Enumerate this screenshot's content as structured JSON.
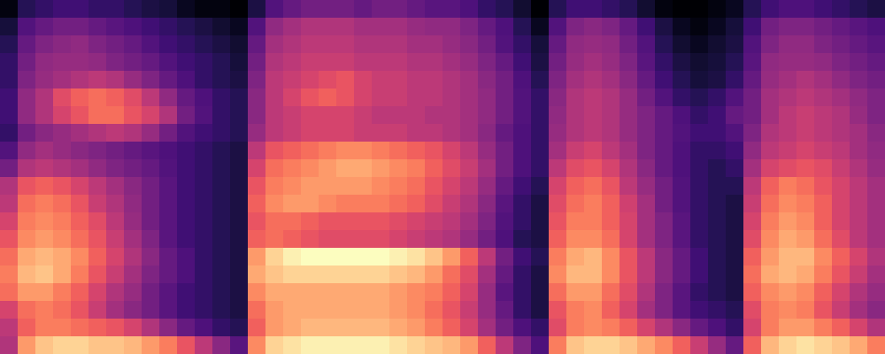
{
  "chart_data": {
    "type": "heatmap",
    "color": "magma",
    "tick_labels": false,
    "cells": [
      [
        30,
        38,
        40,
        42,
        42,
        40,
        40,
        38,
        36,
        35,
        32,
        30,
        30,
        28,
        36,
        45,
        48,
        50,
        50,
        50,
        48,
        50,
        50,
        48,
        46,
        46,
        44,
        40,
        38,
        34,
        28,
        38,
        42,
        42,
        40,
        38,
        34,
        30,
        28,
        28,
        30,
        32,
        38,
        42,
        44,
        44,
        42,
        40,
        38,
        36
      ],
      [
        35,
        45,
        48,
        50,
        50,
        48,
        46,
        44,
        42,
        40,
        38,
        36,
        34,
        32,
        45,
        55,
        58,
        60,
        60,
        60,
        58,
        58,
        58,
        56,
        55,
        55,
        52,
        48,
        44,
        38,
        32,
        45,
        52,
        54,
        52,
        48,
        42,
        36,
        32,
        30,
        32,
        35,
        42,
        50,
        52,
        52,
        50,
        48,
        46,
        44
      ],
      [
        38,
        48,
        52,
        54,
        55,
        52,
        50,
        48,
        45,
        42,
        40,
        38,
        36,
        34,
        48,
        58,
        60,
        62,
        62,
        62,
        60,
        60,
        60,
        58,
        58,
        56,
        54,
        50,
        45,
        40,
        35,
        48,
        55,
        56,
        55,
        50,
        45,
        38,
        34,
        32,
        34,
        36,
        45,
        52,
        55,
        55,
        52,
        50,
        48,
        46
      ],
      [
        40,
        50,
        55,
        56,
        56,
        55,
        52,
        50,
        48,
        45,
        42,
        40,
        38,
        35,
        50,
        60,
        62,
        64,
        64,
        64,
        62,
        62,
        62,
        60,
        60,
        58,
        56,
        52,
        48,
        42,
        36,
        50,
        56,
        58,
        56,
        52,
        46,
        40,
        36,
        34,
        35,
        38,
        46,
        55,
        56,
        56,
        55,
        52,
        50,
        48
      ],
      [
        40,
        52,
        56,
        58,
        60,
        62,
        60,
        56,
        52,
        48,
        44,
        40,
        38,
        36,
        52,
        62,
        64,
        66,
        68,
        70,
        66,
        64,
        64,
        62,
        62,
        60,
        58,
        54,
        50,
        44,
        38,
        52,
        58,
        60,
        58,
        54,
        48,
        42,
        38,
        35,
        36,
        40,
        48,
        56,
        58,
        60,
        58,
        55,
        52,
        50
      ],
      [
        42,
        55,
        60,
        68,
        72,
        74,
        72,
        68,
        62,
        55,
        48,
        44,
        40,
        38,
        54,
        62,
        66,
        70,
        72,
        70,
        66,
        64,
        64,
        62,
        62,
        60,
        58,
        55,
        50,
        45,
        40,
        54,
        60,
        62,
        60,
        56,
        50,
        45,
        40,
        38,
        40,
        45,
        50,
        58,
        60,
        62,
        60,
        58,
        55,
        52
      ],
      [
        42,
        55,
        60,
        66,
        70,
        74,
        74,
        70,
        66,
        60,
        50,
        45,
        40,
        38,
        54,
        62,
        64,
        66,
        66,
        66,
        64,
        62,
        62,
        62,
        60,
        60,
        58,
        55,
        50,
        45,
        40,
        55,
        60,
        62,
        60,
        56,
        52,
        48,
        44,
        40,
        42,
        48,
        50,
        58,
        62,
        64,
        62,
        60,
        56,
        52
      ],
      [
        40,
        50,
        54,
        56,
        58,
        60,
        62,
        60,
        56,
        50,
        45,
        42,
        40,
        38,
        56,
        62,
        64,
        66,
        66,
        66,
        64,
        64,
        64,
        62,
        62,
        60,
        58,
        54,
        48,
        44,
        40,
        56,
        60,
        62,
        60,
        56,
        52,
        48,
        45,
        42,
        42,
        45,
        52,
        60,
        62,
        64,
        62,
        60,
        58,
        54
      ],
      [
        45,
        55,
        58,
        56,
        54,
        52,
        50,
        48,
        46,
        44,
        42,
        40,
        38,
        36,
        62,
        70,
        72,
        74,
        76,
        78,
        78,
        76,
        74,
        72,
        70,
        66,
        62,
        56,
        50,
        44,
        40,
        58,
        64,
        66,
        62,
        58,
        52,
        48,
        44,
        40,
        40,
        42,
        55,
        62,
        64,
        66,
        64,
        62,
        58,
        55
      ],
      [
        50,
        60,
        62,
        60,
        58,
        55,
        52,
        50,
        48,
        45,
        42,
        40,
        38,
        36,
        66,
        74,
        76,
        78,
        80,
        82,
        82,
        80,
        78,
        76,
        72,
        68,
        64,
        58,
        50,
        44,
        40,
        62,
        68,
        70,
        66,
        60,
        54,
        48,
        44,
        40,
        38,
        40,
        58,
        66,
        68,
        70,
        68,
        64,
        60,
        56
      ],
      [
        60,
        70,
        72,
        70,
        66,
        62,
        58,
        54,
        50,
        46,
        42,
        40,
        38,
        36,
        70,
        76,
        78,
        80,
        80,
        80,
        80,
        78,
        76,
        74,
        70,
        66,
        62,
        56,
        48,
        42,
        38,
        66,
        72,
        74,
        70,
        62,
        56,
        50,
        45,
        40,
        38,
        38,
        62,
        72,
        76,
        74,
        70,
        66,
        62,
        58
      ],
      [
        62,
        74,
        76,
        74,
        70,
        64,
        60,
        55,
        50,
        46,
        42,
        40,
        38,
        36,
        72,
        78,
        80,
        80,
        78,
        76,
        76,
        76,
        74,
        72,
        68,
        64,
        60,
        54,
        46,
        40,
        36,
        68,
        74,
        76,
        72,
        65,
        58,
        50,
        45,
        40,
        38,
        36,
        64,
        74,
        78,
        76,
        72,
        66,
        62,
        58
      ],
      [
        66,
        76,
        78,
        76,
        72,
        68,
        62,
        56,
        50,
        46,
        42,
        40,
        38,
        36,
        70,
        74,
        74,
        72,
        70,
        70,
        70,
        70,
        68,
        66,
        64,
        62,
        58,
        52,
        45,
        40,
        36,
        70,
        76,
        76,
        72,
        66,
        58,
        52,
        46,
        40,
        38,
        36,
        66,
        76,
        80,
        78,
        72,
        66,
        62,
        58
      ],
      [
        70,
        78,
        80,
        78,
        74,
        70,
        64,
        58,
        52,
        46,
        42,
        40,
        38,
        36,
        72,
        74,
        72,
        70,
        68,
        68,
        68,
        68,
        66,
        64,
        62,
        60,
        56,
        50,
        44,
        38,
        36,
        72,
        78,
        78,
        74,
        66,
        58,
        52,
        46,
        40,
        38,
        36,
        68,
        78,
        82,
        80,
        74,
        68,
        62,
        58
      ],
      [
        74,
        82,
        84,
        82,
        78,
        72,
        66,
        60,
        54,
        48,
        44,
        40,
        38,
        36,
        80,
        88,
        92,
        94,
        94,
        94,
        94,
        94,
        92,
        90,
        86,
        80,
        72,
        62,
        50,
        42,
        38,
        76,
        82,
        84,
        78,
        70,
        62,
        54,
        48,
        42,
        38,
        36,
        72,
        80,
        84,
        84,
        78,
        72,
        66,
        60
      ],
      [
        76,
        84,
        86,
        82,
        76,
        70,
        64,
        58,
        52,
        48,
        44,
        40,
        38,
        36,
        82,
        86,
        88,
        88,
        88,
        88,
        88,
        88,
        86,
        84,
        80,
        74,
        68,
        58,
        48,
        40,
        36,
        78,
        84,
        84,
        78,
        70,
        62,
        54,
        48,
        42,
        38,
        36,
        74,
        82,
        84,
        82,
        76,
        70,
        64,
        58
      ],
      [
        74,
        80,
        80,
        76,
        72,
        66,
        60,
        56,
        50,
        46,
        42,
        40,
        38,
        36,
        78,
        82,
        82,
        82,
        82,
        82,
        82,
        82,
        80,
        78,
        76,
        72,
        66,
        56,
        46,
        40,
        36,
        74,
        80,
        80,
        74,
        68,
        60,
        52,
        46,
        40,
        38,
        36,
        72,
        78,
        80,
        78,
        72,
        66,
        60,
        56
      ],
      [
        66,
        74,
        76,
        74,
        70,
        64,
        58,
        54,
        50,
        46,
        42,
        40,
        38,
        36,
        74,
        80,
        82,
        82,
        82,
        82,
        82,
        82,
        80,
        78,
        74,
        70,
        64,
        56,
        48,
        40,
        36,
        70,
        76,
        78,
        72,
        66,
        58,
        52,
        46,
        42,
        40,
        38,
        68,
        76,
        78,
        76,
        70,
        64,
        58,
        54
      ],
      [
        62,
        72,
        76,
        76,
        74,
        72,
        70,
        66,
        60,
        54,
        48,
        44,
        40,
        38,
        72,
        80,
        82,
        84,
        84,
        84,
        84,
        84,
        82,
        80,
        76,
        72,
        66,
        58,
        50,
        44,
        40,
        68,
        76,
        78,
        76,
        72,
        66,
        60,
        54,
        48,
        44,
        40,
        66,
        76,
        80,
        80,
        76,
        72,
        66,
        60
      ],
      [
        60,
        80,
        86,
        88,
        88,
        86,
        86,
        84,
        80,
        76,
        70,
        62,
        54,
        46,
        78,
        88,
        90,
        92,
        92,
        92,
        92,
        92,
        90,
        88,
        86,
        84,
        80,
        72,
        62,
        52,
        44,
        76,
        86,
        88,
        88,
        86,
        82,
        78,
        72,
        64,
        56,
        48,
        72,
        84,
        88,
        90,
        88,
        86,
        82,
        76
      ]
    ]
  }
}
